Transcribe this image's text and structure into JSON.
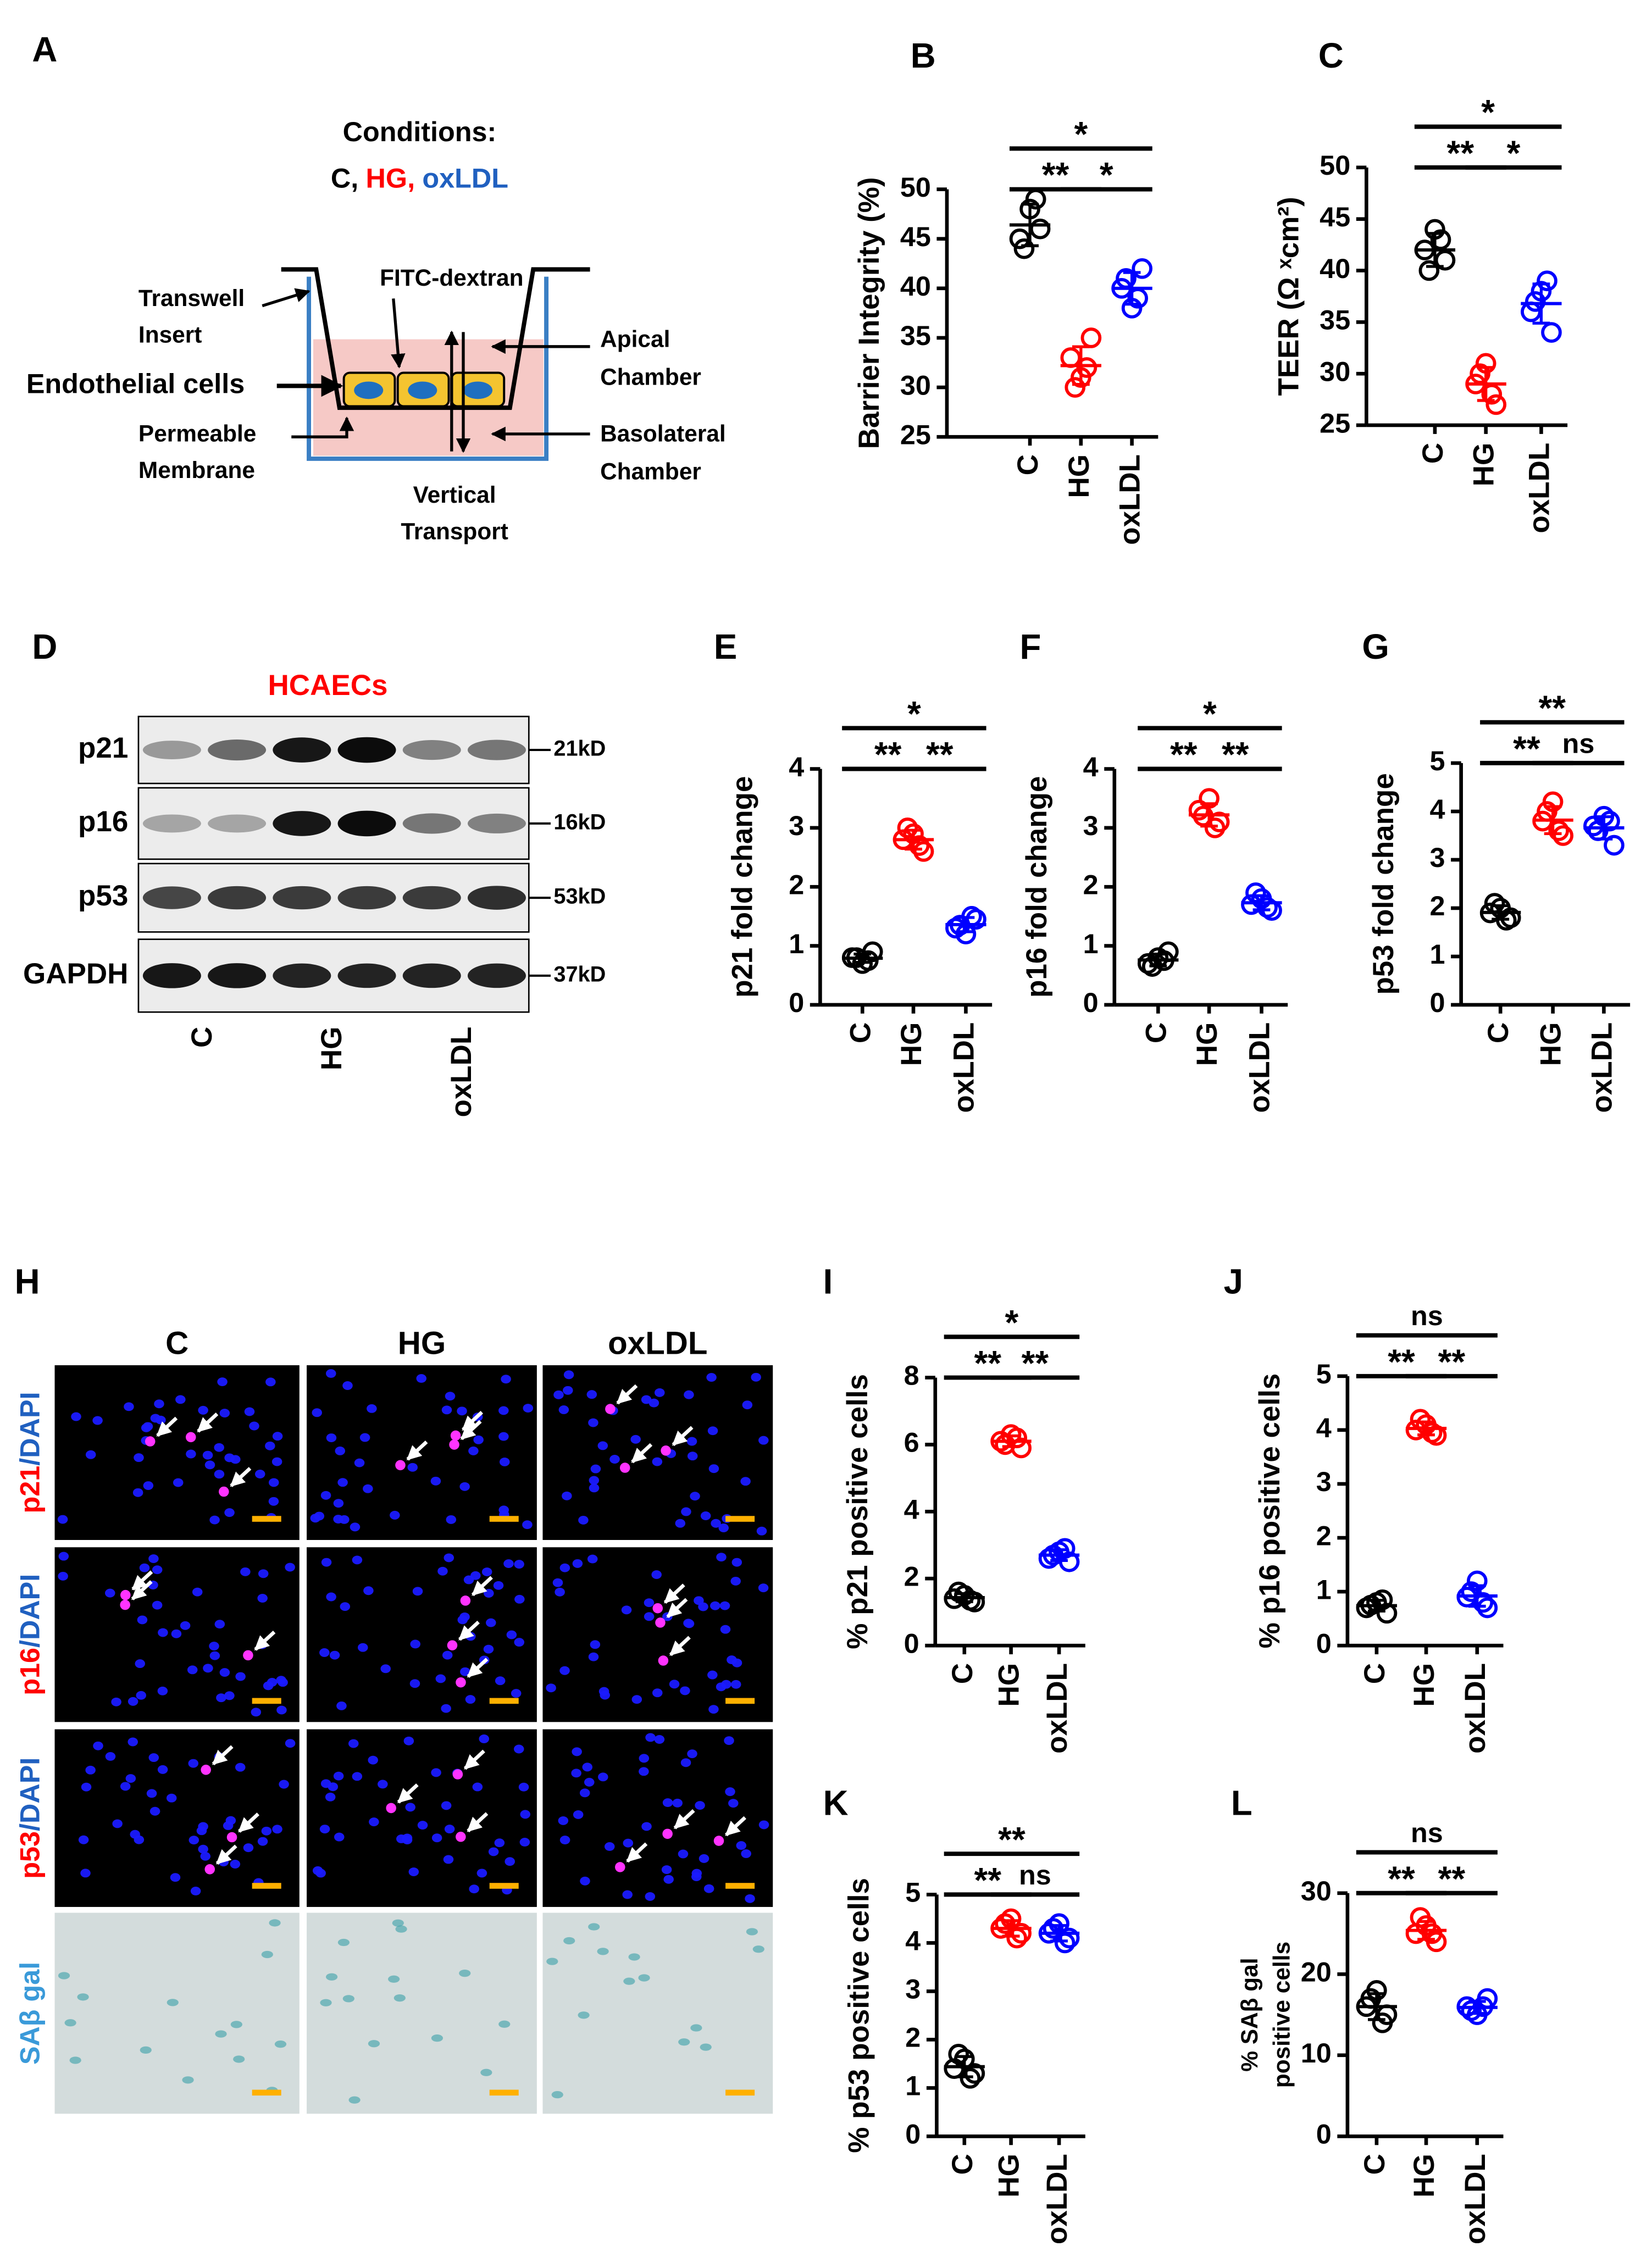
{
  "diagram": {
    "label": "A",
    "conditions_title": "Conditions:",
    "conditions": [
      "C,",
      "HG,",
      "oxLDL"
    ],
    "fitc": "FITC-dextran",
    "transwell": [
      "Transwell",
      "Insert"
    ],
    "cells": "Endothelial cells",
    "membrane": [
      "Permeable",
      "Membrane"
    ],
    "apical": [
      "Apical",
      "Chamber"
    ],
    "basolateral": [
      "Basolateral",
      "Chamber"
    ],
    "transport": [
      "Vertical",
      "Transport"
    ]
  },
  "blot": {
    "label": "D",
    "title": "HCAECs",
    "proteins": [
      "p21",
      "p16",
      "p53",
      "GAPDH"
    ],
    "sizes": [
      "21kD",
      "16kD",
      "53kD",
      "37kD"
    ],
    "groups": [
      "C",
      "HG",
      "oxLDL"
    ]
  },
  "micrographs": {
    "label": "H",
    "columns": [
      "C",
      "HG",
      "oxLDL"
    ],
    "rows": [
      {
        "marker": "p21",
        "stain": "/DAPI"
      },
      {
        "marker": "p16",
        "stain": "/DAPI"
      },
      {
        "marker": "p53",
        "stain": "/DAPI"
      },
      {
        "marker": "SAβ gal"
      }
    ]
  },
  "chart_data": [
    {
      "type": "dot",
      "label": "B",
      "ylabel": "Barrier Integrity (%)",
      "categories": [
        "C",
        "HG",
        "oxLDL"
      ],
      "colors": [
        "#000000",
        "#ff0000",
        "#0000ff"
      ],
      "values": [
        [
          45,
          48,
          46,
          44,
          49
        ],
        [
          33,
          31,
          35,
          30,
          32
        ],
        [
          40,
          38,
          42,
          41,
          39
        ]
      ],
      "means": [
        46.4,
        32.2,
        40
      ],
      "sd": [
        2.1,
        1.9,
        1.6
      ],
      "ylim": [
        25,
        50
      ],
      "yticks": [
        25,
        30,
        35,
        40,
        45,
        50
      ],
      "significance": [
        {
          "between": [
            0,
            1
          ],
          "label": "**"
        },
        {
          "between": [
            1,
            2
          ],
          "label": "*"
        },
        {
          "between": [
            0,
            2
          ],
          "label": "*"
        }
      ]
    },
    {
      "type": "dot",
      "label": "C",
      "ylabel": "TEER (Ω ˣcm²)",
      "categories": [
        "C",
        "HG",
        "oxLDL"
      ],
      "colors": [
        "#000000",
        "#ff0000",
        "#0000ff"
      ],
      "values": [
        [
          42,
          44,
          41,
          40,
          43
        ],
        [
          29,
          31,
          27,
          30,
          28
        ],
        [
          36,
          38,
          34,
          37,
          39
        ]
      ],
      "means": [
        42,
        29,
        36.8
      ],
      "sd": [
        1.6,
        1.6,
        1.9
      ],
      "ylim": [
        25,
        50
      ],
      "yticks": [
        25,
        30,
        35,
        40,
        45,
        50
      ],
      "significance": [
        {
          "between": [
            0,
            1
          ],
          "label": "**"
        },
        {
          "between": [
            1,
            2
          ],
          "label": "*"
        },
        {
          "between": [
            0,
            2
          ],
          "label": "*"
        }
      ]
    },
    {
      "type": "dot",
      "label": "E",
      "ylabel": "p21 fold change",
      "categories": [
        "C",
        "HG",
        "oxLDL"
      ],
      "colors": [
        "#000000",
        "#ff0000",
        "#0000ff"
      ],
      "values": [
        [
          0.8,
          0.7,
          0.9,
          0.8,
          0.75
        ],
        [
          2.8,
          2.9,
          2.6,
          3.0,
          2.7
        ],
        [
          1.3,
          1.2,
          1.45,
          1.35,
          1.5
        ]
      ],
      "means": [
        0.79,
        2.8,
        1.36
      ],
      "sd": [
        0.07,
        0.16,
        0.12
      ],
      "ylim": [
        0,
        4
      ],
      "yticks": [
        0,
        1,
        2,
        3,
        4
      ],
      "significance": [
        {
          "between": [
            0,
            1
          ],
          "label": "**"
        },
        {
          "between": [
            1,
            2
          ],
          "label": "**"
        },
        {
          "between": [
            0,
            2
          ],
          "label": "*"
        }
      ]
    },
    {
      "type": "dot",
      "label": "F",
      "ylabel": "p16 fold change",
      "categories": [
        "C",
        "HG",
        "oxLDL"
      ],
      "colors": [
        "#000000",
        "#ff0000",
        "#0000ff"
      ],
      "values": [
        [
          0.7,
          0.8,
          0.9,
          0.65,
          0.75
        ],
        [
          3.3,
          3.5,
          3.1,
          3.2,
          3.0
        ],
        [
          1.7,
          1.8,
          1.6,
          1.9,
          1.65
        ]
      ],
      "means": [
        0.76,
        3.22,
        1.73
      ],
      "sd": [
        0.1,
        0.19,
        0.12
      ],
      "ylim": [
        0,
        4
      ],
      "yticks": [
        0,
        1,
        2,
        3,
        4
      ],
      "significance": [
        {
          "between": [
            0,
            1
          ],
          "label": "**"
        },
        {
          "between": [
            1,
            2
          ],
          "label": "**"
        },
        {
          "between": [
            0,
            2
          ],
          "label": "*"
        }
      ]
    },
    {
      "type": "dot",
      "label": "G",
      "ylabel": "p53 fold change",
      "categories": [
        "C",
        "HG",
        "oxLDL"
      ],
      "colors": [
        "#000000",
        "#ff0000",
        "#0000ff"
      ],
      "values": [
        [
          1.9,
          2.0,
          1.8,
          2.1,
          1.75
        ],
        [
          3.8,
          4.2,
          3.5,
          4.0,
          3.6
        ],
        [
          3.7,
          3.9,
          3.3,
          3.6,
          3.8
        ]
      ],
      "means": [
        1.91,
        3.82,
        3.66
      ],
      "sd": [
        0.14,
        0.28,
        0.23
      ],
      "ylim": [
        0,
        5
      ],
      "yticks": [
        0,
        1,
        2,
        3,
        4,
        5
      ],
      "significance": [
        {
          "between": [
            0,
            1
          ],
          "label": "**"
        },
        {
          "between": [
            1,
            2
          ],
          "label": "ns"
        },
        {
          "between": [
            0,
            2
          ],
          "label": "**"
        }
      ]
    },
    {
      "type": "dot",
      "label": "I",
      "ylabel": "% p21 positive cells",
      "categories": [
        "C",
        "HG",
        "oxLDL"
      ],
      "colors": [
        "#000000",
        "#ff0000",
        "#0000ff"
      ],
      "values": [
        [
          1.4,
          1.5,
          1.3,
          1.6,
          1.35
        ],
        [
          6.1,
          6.3,
          5.9,
          6.0,
          6.2
        ],
        [
          2.6,
          2.8,
          2.5,
          2.7,
          2.9
        ]
      ],
      "means": [
        1.43,
        6.1,
        2.7
      ],
      "sd": [
        0.12,
        0.16,
        0.16
      ],
      "ylim": [
        0,
        8
      ],
      "yticks": [
        0,
        2,
        4,
        6,
        8
      ],
      "significance": [
        {
          "between": [
            0,
            1
          ],
          "label": "**"
        },
        {
          "between": [
            1,
            2
          ],
          "label": "**"
        },
        {
          "between": [
            0,
            2
          ],
          "label": "*"
        }
      ]
    },
    {
      "type": "dot",
      "label": "J",
      "ylabel": "% p16 positive cells",
      "categories": [
        "C",
        "HG",
        "oxLDL"
      ],
      "colors": [
        "#000000",
        "#ff0000",
        "#0000ff"
      ],
      "values": [
        [
          0.7,
          0.8,
          0.6,
          0.75,
          0.85
        ],
        [
          4.0,
          4.1,
          3.9,
          4.2,
          3.95
        ],
        [
          0.9,
          1.2,
          0.7,
          1.0,
          0.8
        ]
      ],
      "means": [
        0.74,
        4.03,
        0.92
      ],
      "sd": [
        0.1,
        0.12,
        0.19
      ],
      "ylim": [
        0,
        5
      ],
      "yticks": [
        0,
        1,
        2,
        3,
        4,
        5
      ],
      "significance": [
        {
          "between": [
            0,
            1
          ],
          "label": "**"
        },
        {
          "between": [
            1,
            2
          ],
          "label": "**"
        },
        {
          "between": [
            0,
            2
          ],
          "label": "ns"
        }
      ]
    },
    {
      "type": "dot",
      "label": "K",
      "ylabel": "% p53 positive cells",
      "categories": [
        "C",
        "HG",
        "oxLDL"
      ],
      "colors": [
        "#000000",
        "#ff0000",
        "#0000ff"
      ],
      "values": [
        [
          1.4,
          1.6,
          1.3,
          1.7,
          1.2
        ],
        [
          4.3,
          4.5,
          4.2,
          4.4,
          4.1
        ],
        [
          4.2,
          4.4,
          4.1,
          4.3,
          4.0
        ]
      ],
      "means": [
        1.44,
        4.3,
        4.2
      ],
      "sd": [
        0.21,
        0.16,
        0.16
      ],
      "ylim": [
        0,
        5
      ],
      "yticks": [
        0,
        1,
        2,
        3,
        4,
        5
      ],
      "significance": [
        {
          "between": [
            0,
            1
          ],
          "label": "**"
        },
        {
          "between": [
            1,
            2
          ],
          "label": "ns"
        },
        {
          "between": [
            0,
            2
          ],
          "label": "**"
        }
      ]
    },
    {
      "type": "dot",
      "label": "L",
      "ylabel": [
        "% SAβ gal",
        "positive cells"
      ],
      "categories": [
        "C",
        "HG",
        "oxLDL"
      ],
      "colors": [
        "#000000",
        "#ff0000",
        "#0000ff"
      ],
      "values": [
        [
          16,
          18,
          15,
          17,
          14
        ],
        [
          25,
          26,
          24,
          27,
          25
        ],
        [
          16,
          15,
          17,
          15.5,
          16
        ]
      ],
      "means": [
        16,
        25.4,
        15.9
      ],
      "sd": [
        1.6,
        1.1,
        0.74
      ],
      "ylim": [
        0,
        30
      ],
      "yticks": [
        0,
        10,
        20,
        30
      ],
      "significance": [
        {
          "between": [
            0,
            1
          ],
          "label": "**"
        },
        {
          "between": [
            1,
            2
          ],
          "label": "**"
        },
        {
          "between": [
            0,
            2
          ],
          "label": "ns"
        }
      ]
    }
  ]
}
